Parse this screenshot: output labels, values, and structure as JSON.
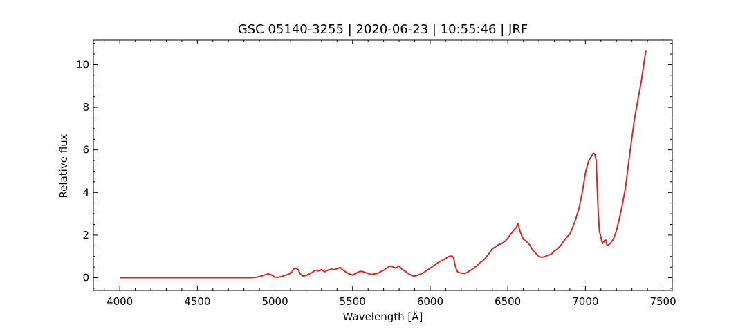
{
  "chart_data": {
    "type": "line",
    "title": "GSC 05140-3255 | 2020-06-23 | 10:55:46 | JRF",
    "xlabel": "Wavelength [Å]",
    "ylabel": "Relative flux",
    "xlim": [
      3830,
      7560
    ],
    "ylim": [
      -0.6,
      11.15
    ],
    "x_ticks": [
      4000,
      4500,
      5000,
      5500,
      6000,
      6500,
      7000,
      7500
    ],
    "y_ticks": [
      0,
      2,
      4,
      6,
      8,
      10
    ],
    "x_minor_step": 100,
    "y_minor_step": 0.5,
    "grid": false,
    "line_color": "#d62728",
    "series": [
      {
        "x": [
          4000,
          4050,
          4100,
          4150,
          4200,
          4250,
          4300,
          4350,
          4400,
          4450,
          4500,
          4550,
          4600,
          4650,
          4700,
          4750,
          4800,
          4850,
          4880,
          4900,
          4920,
          4940,
          4960,
          4980,
          5000,
          5020,
          5040,
          5060,
          5080,
          5100,
          5110,
          5120,
          5130,
          5140,
          5150,
          5160,
          5180,
          5200,
          5220,
          5240,
          5260,
          5280,
          5300,
          5320,
          5340,
          5360,
          5380,
          5400,
          5420,
          5440,
          5460,
          5480,
          5500,
          5520,
          5540,
          5560,
          5580,
          5600,
          5620,
          5640,
          5660,
          5680,
          5700,
          5720,
          5740,
          5760,
          5780,
          5800,
          5820,
          5840,
          5860,
          5880,
          5900,
          5920,
          5940,
          5960,
          5980,
          6000,
          6020,
          6040,
          6060,
          6080,
          6100,
          6120,
          6140,
          6150,
          6160,
          6170,
          6180,
          6200,
          6220,
          6240,
          6260,
          6280,
          6300,
          6320,
          6340,
          6360,
          6380,
          6400,
          6420,
          6440,
          6460,
          6480,
          6500,
          6520,
          6540,
          6555,
          6565,
          6580,
          6600,
          6620,
          6640,
          6660,
          6680,
          6700,
          6720,
          6740,
          6760,
          6780,
          6800,
          6820,
          6840,
          6860,
          6880,
          6900,
          6920,
          6940,
          6960,
          6980,
          7000,
          7010,
          7020,
          7030,
          7040,
          7050,
          7060,
          7070,
          7080,
          7090,
          7100,
          7110,
          7120,
          7130,
          7140,
          7160,
          7180,
          7200,
          7220,
          7240,
          7260,
          7280,
          7300,
          7320,
          7340,
          7360,
          7380,
          7390
        ],
        "values": [
          0,
          0,
          0,
          0,
          0,
          0,
          0,
          0,
          0,
          0,
          0,
          0,
          0,
          0,
          0,
          0,
          0,
          0,
          0.02,
          0.05,
          0.1,
          0.15,
          0.18,
          0.12,
          0.03,
          0.02,
          0.05,
          0.1,
          0.15,
          0.2,
          0.28,
          0.4,
          0.45,
          0.42,
          0.38,
          0.2,
          0.08,
          0.1,
          0.18,
          0.25,
          0.35,
          0.32,
          0.38,
          0.28,
          0.35,
          0.4,
          0.38,
          0.42,
          0.48,
          0.35,
          0.25,
          0.18,
          0.12,
          0.2,
          0.28,
          0.3,
          0.25,
          0.2,
          0.15,
          0.18,
          0.2,
          0.28,
          0.35,
          0.45,
          0.55,
          0.5,
          0.45,
          0.55,
          0.38,
          0.3,
          0.2,
          0.1,
          0.08,
          0.12,
          0.18,
          0.25,
          0.35,
          0.45,
          0.55,
          0.65,
          0.75,
          0.82,
          0.9,
          1.0,
          1.02,
          0.95,
          0.6,
          0.35,
          0.25,
          0.22,
          0.2,
          0.25,
          0.35,
          0.45,
          0.55,
          0.7,
          0.8,
          0.95,
          1.15,
          1.35,
          1.45,
          1.55,
          1.6,
          1.7,
          1.85,
          2.05,
          2.25,
          2.35,
          2.55,
          2.15,
          1.8,
          1.7,
          1.55,
          1.3,
          1.15,
          1.0,
          0.95,
          1.0,
          1.05,
          1.1,
          1.25,
          1.35,
          1.5,
          1.7,
          1.9,
          2.05,
          2.4,
          2.8,
          3.3,
          4.0,
          4.9,
          5.2,
          5.45,
          5.6,
          5.7,
          5.85,
          5.8,
          5.5,
          3.5,
          2.2,
          1.9,
          1.6,
          1.7,
          1.8,
          1.5,
          1.6,
          1.8,
          2.2,
          2.8,
          3.5,
          4.3,
          5.5,
          6.6,
          7.6,
          8.4,
          9.2,
          10.2,
          10.65
        ]
      }
    ]
  }
}
